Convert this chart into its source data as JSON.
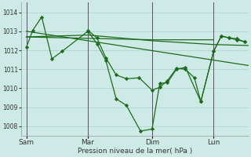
{
  "xlabel": "Pression niveau de la mer( hPa )",
  "bg_color": "#ceeae6",
  "grid_color": "#aacfcc",
  "line_color": "#1e6b1e",
  "ylim": [
    1007.5,
    1014.5
  ],
  "xlim": [
    -2,
    175
  ],
  "day_labels": [
    "Sam",
    "Mar",
    "Dim",
    "Lun"
  ],
  "day_positions": [
    2,
    50,
    100,
    148
  ],
  "vline_positions": [
    2,
    50,
    100,
    148
  ],
  "yticks": [
    1008,
    1009,
    1010,
    1011,
    1012,
    1013,
    1014
  ],
  "series": [
    {
      "x": [
        2,
        7,
        14,
        22,
        30,
        50,
        57,
        64,
        72,
        80,
        91,
        100,
        106,
        112,
        119,
        126,
        138,
        148,
        154,
        160,
        166,
        172
      ],
      "y": [
        1012.15,
        1013.05,
        1013.75,
        1011.55,
        1011.95,
        1013.0,
        1012.35,
        1011.45,
        1009.45,
        1009.1,
        1007.75,
        1007.85,
        1010.25,
        1010.3,
        1011.0,
        1011.1,
        1009.3,
        1011.95,
        1012.75,
        1012.65,
        1012.6,
        1012.45
      ],
      "marker": "D",
      "markersize": 2.2,
      "linewidth": 0.9
    },
    {
      "x": [
        2,
        100,
        148
      ],
      "y": [
        1012.7,
        1012.55,
        1012.55
      ],
      "marker": null,
      "markersize": 0,
      "linewidth": 0.9
    },
    {
      "x": [
        2,
        175
      ],
      "y": [
        1013.0,
        1011.2
      ],
      "marker": null,
      "markersize": 0,
      "linewidth": 0.9
    },
    {
      "x": [
        2,
        50,
        100,
        148,
        175
      ],
      "y": [
        1012.7,
        1012.8,
        1012.5,
        1012.3,
        1012.25
      ],
      "marker": null,
      "markersize": 0,
      "linewidth": 0.9
    },
    {
      "x": [
        50,
        57,
        64,
        72,
        80,
        90,
        100,
        106,
        112,
        119,
        126,
        133,
        138,
        148,
        154,
        160,
        166,
        172
      ],
      "y": [
        1013.05,
        1012.65,
        1011.6,
        1010.7,
        1010.5,
        1010.55,
        1009.9,
        1010.05,
        1010.4,
        1011.05,
        1011.0,
        1010.55,
        1009.3,
        1011.95,
        1012.75,
        1012.65,
        1012.55,
        1012.45
      ],
      "marker": "D",
      "markersize": 2.2,
      "linewidth": 0.9
    }
  ]
}
